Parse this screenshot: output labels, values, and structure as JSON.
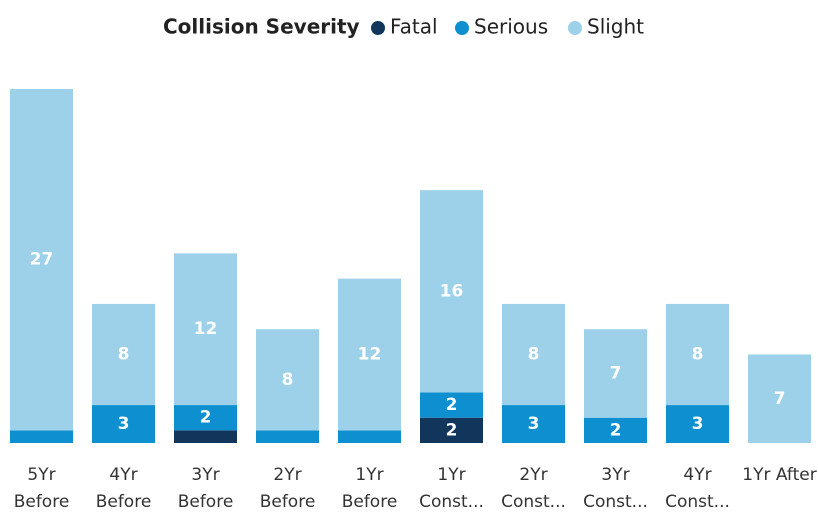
{
  "chart_data": {
    "type": "bar",
    "stacked": true,
    "legend_title": "Collision Severity",
    "categories": [
      "5Yr Before",
      "4Yr Before",
      "3Yr Before",
      "2Yr Before",
      "1Yr Before",
      "1Yr Const...",
      "2Yr Const...",
      "3Yr Const...",
      "4Yr Const...",
      "1Yr After"
    ],
    "series": [
      {
        "name": "Fatal",
        "color": "#12355b",
        "values": [
          null,
          null,
          1,
          null,
          null,
          2,
          null,
          null,
          null,
          null
        ]
      },
      {
        "name": "Serious",
        "color": "#0e8fcf",
        "values": [
          1,
          3,
          2,
          1,
          1,
          2,
          3,
          2,
          3,
          null
        ]
      },
      {
        "name": "Slight",
        "color": "#9dd1ea",
        "values": [
          27,
          8,
          12,
          8,
          12,
          16,
          8,
          7,
          8,
          7
        ]
      }
    ],
    "ylim": [
      0,
      28
    ]
  }
}
